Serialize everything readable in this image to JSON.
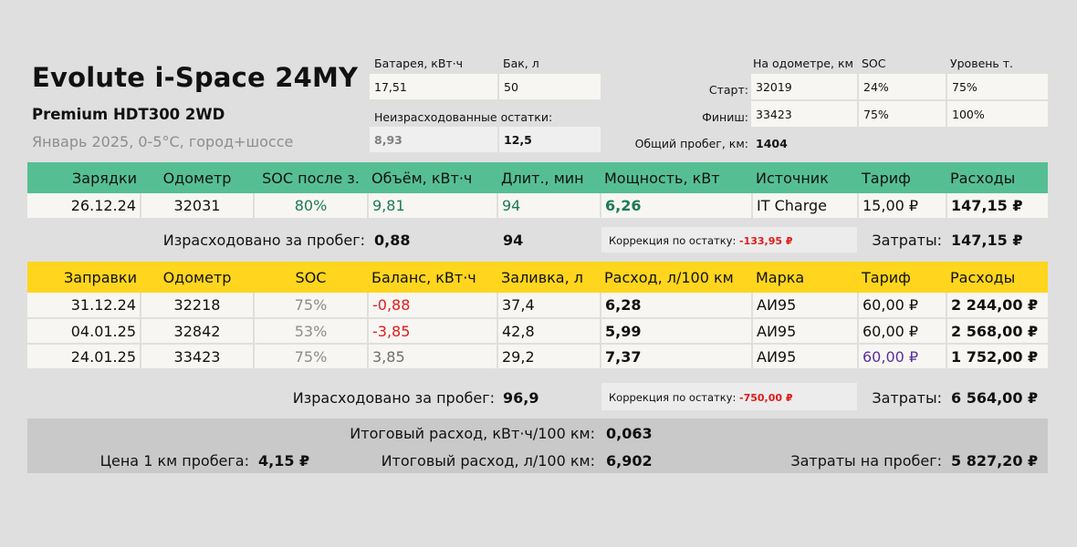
{
  "header": {
    "title": "Evolute i-Space 24MY",
    "subtitle": "Premium HDT300 2WD",
    "conditions": "Январь 2025, 0-5°C, город+шоссе"
  },
  "capacity": {
    "battery_label": "Батарея, кВт·ч",
    "battery_value": "17,51",
    "tank_label": "Бак, л",
    "tank_value": "50",
    "remaining_label": "Неизрасходованные остатки:",
    "remaining_battery": "8,93",
    "remaining_tank": "12,5"
  },
  "trip": {
    "odometer_label": "На одометре, км",
    "soc_label": "SOC",
    "fuel_level_label": "Уровень т.",
    "start_label": "Старт:",
    "start_odometer": "32019",
    "start_soc": "24%",
    "start_fuel": "75%",
    "finish_label": "Финиш:",
    "finish_odometer": "33423",
    "finish_soc": "75%",
    "finish_fuel": "100%",
    "total_distance_label": "Общий пробег, км:",
    "total_distance": "1404"
  },
  "charging": {
    "headers": [
      "Зарядки",
      "Одометр",
      "SOC после з.",
      "Объём, кВт·ч",
      "Длит., мин",
      "Мощность, кВт",
      "Источник",
      "Тариф",
      "Расходы"
    ],
    "rows": [
      {
        "date": "26.12.24",
        "odometer": "32031",
        "soc": "80%",
        "volume": "9,81",
        "duration": "94",
        "power": "6,26",
        "source": "IT Charge",
        "tariff": "15,00 ₽",
        "cost": "147,15 ₽"
      }
    ],
    "consumed_label": "Израсходовано за пробег:",
    "consumed_value": "0,88",
    "duration_total": "94",
    "correction_label": "Коррекция по остатку:",
    "correction_value": "-133,95 ₽",
    "expenses_label": "Затраты:",
    "expenses_value": "147,15 ₽"
  },
  "fueling": {
    "headers": [
      "Заправки",
      "Одометр",
      "SOC",
      "Баланс, кВт·ч",
      "Заливка, л",
      "Расход, л/100 км",
      "Марка",
      "Тариф",
      "Расходы"
    ],
    "rows": [
      {
        "date": "31.12.24",
        "odometer": "32218",
        "soc": "75%",
        "balance": "-0,88",
        "fill": "37,4",
        "consumption": "6,28",
        "brand": "АИ95",
        "tariff": "60,00 ₽",
        "cost": "2 244,00 ₽"
      },
      {
        "date": "04.01.25",
        "odometer": "32842",
        "soc": "53%",
        "balance": "-3,85",
        "fill": "42,8",
        "consumption": "5,99",
        "brand": "АИ95",
        "tariff": "60,00 ₽",
        "cost": "2 568,00 ₽"
      },
      {
        "date": "24.01.25",
        "odometer": "33423",
        "soc": "75%",
        "balance": "3,85",
        "fill": "29,2",
        "consumption": "7,37",
        "brand": "АИ95",
        "tariff": "60,00 ₽",
        "cost": "1 752,00 ₽"
      }
    ],
    "consumed_label": "Израсходовано за пробег:",
    "consumed_value": "96,9",
    "correction_label": "Коррекция по остатку:",
    "correction_value": "-750,00 ₽",
    "expenses_label": "Затраты:",
    "expenses_value": "6 564,00 ₽"
  },
  "totals": {
    "kwh_label": "Итоговый расход, кВт·ч/100 км:",
    "kwh_value": "0,063",
    "price_km_label": "Цена 1 км пробега:",
    "price_km_value": "4,15 ₽",
    "fuel_label": "Итоговый расход, л/100 км:",
    "fuel_value": "6,902",
    "cost_label": "Затраты на пробег:",
    "cost_value": "5 827,20 ₽"
  },
  "colors": {
    "charging_header": "#55bf93",
    "fueling_header": "#ffd51e",
    "negative": "#e11b1b",
    "positive_green": "#1c7a58",
    "background": "#dfdfdf",
    "cell": "#f8f6f2"
  }
}
